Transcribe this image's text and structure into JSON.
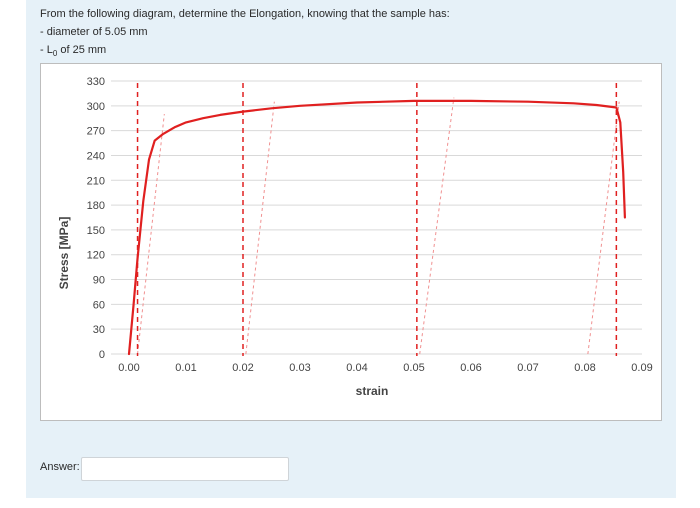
{
  "question": {
    "intro": "From the following diagram, determine the Elongation, knowing that the sample has:",
    "diameter_line": "- diameter of 5.05 mm",
    "l0_prefix": "- L",
    "l0_sub": "0",
    "l0_suffix": " of 25 mm"
  },
  "answer": {
    "label": "Answer:",
    "value": ""
  },
  "colors": {
    "curve": "#e02020",
    "marker_line": "#e02020",
    "unload_line": "#f09090",
    "grid": "#d9d9d9",
    "tick_text": "#444444"
  },
  "chart_data": {
    "type": "line",
    "title": "",
    "xlabel": "strain",
    "ylabel": "Stress [MPa]",
    "xlim": [
      0,
      0.09
    ],
    "ylim": [
      0,
      330
    ],
    "x_ticks": [
      "0.00",
      "0.01",
      "0.02",
      "0.03",
      "0.04",
      "0.05",
      "0.06",
      "0.07",
      "0.08",
      "0.09"
    ],
    "y_ticks": [
      "0",
      "30",
      "60",
      "90",
      "120",
      "150",
      "180",
      "210",
      "240",
      "270",
      "300",
      "330"
    ],
    "grid": "horizontal",
    "series": [
      {
        "x": [
          0.0,
          0.0008,
          0.0015,
          0.0025,
          0.0035,
          0.0045,
          0.006,
          0.008,
          0.01,
          0.013,
          0.016,
          0.02,
          0.025,
          0.03,
          0.04,
          0.05,
          0.06,
          0.07,
          0.078,
          0.082,
          0.0855,
          0.0862,
          0.0867,
          0.087
        ],
        "y": [
          0,
          60,
          115,
          185,
          235,
          258,
          266,
          274,
          280,
          285,
          289,
          293,
          297,
          300,
          304,
          306,
          306,
          305,
          303,
          301,
          298,
          280,
          220,
          165
        ]
      }
    ],
    "vertical_markers": [
      0.0015,
      0.02,
      0.0505,
      0.0855
    ],
    "unloading_lines": [
      {
        "x": [
          0.0015,
          0.0062
        ],
        "y": [
          0,
          290
        ]
      },
      {
        "x": [
          0.0205,
          0.0255
        ],
        "y": [
          0,
          305
        ]
      },
      {
        "x": [
          0.051,
          0.057
        ],
        "y": [
          0,
          310
        ]
      },
      {
        "x": [
          0.0805,
          0.086
        ],
        "y": [
          0,
          305
        ]
      }
    ]
  }
}
